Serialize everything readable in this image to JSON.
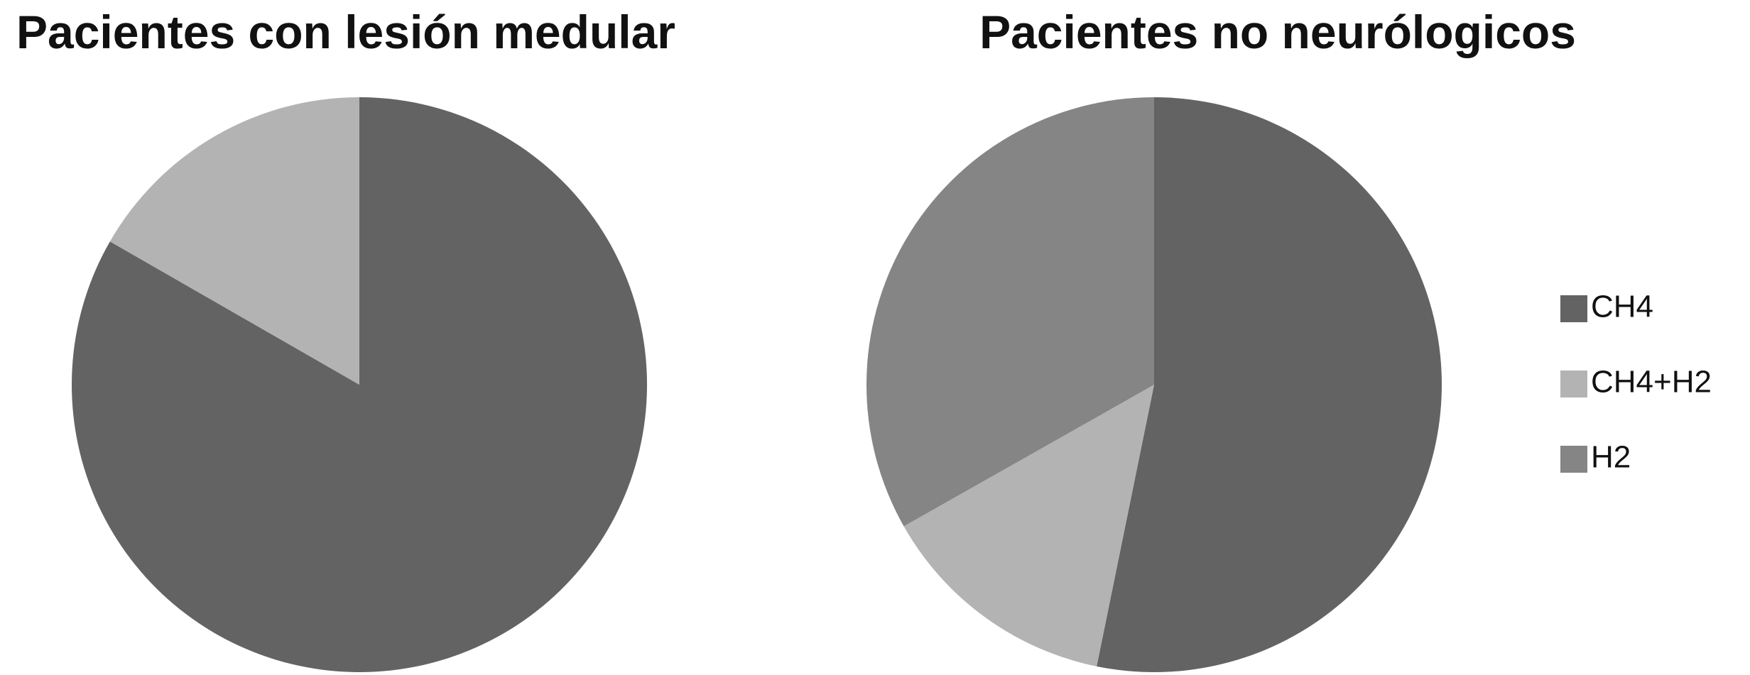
{
  "chart_data": [
    {
      "type": "pie",
      "title": "Pacientes con lesión medular",
      "categories": [
        "CH4",
        "CH4+H2",
        "H2"
      ],
      "values": [
        83.3,
        16.7,
        0
      ],
      "colors": [
        "#636363",
        "#b3b3b3",
        "#858585"
      ]
    },
    {
      "type": "pie",
      "title": "Pacientes no neurólogicos",
      "categories": [
        "CH4",
        "CH4+H2",
        "H2"
      ],
      "values": [
        53.2,
        13.6,
        33.2
      ],
      "colors": [
        "#636363",
        "#b3b3b3",
        "#858585"
      ],
      "legend": "right"
    }
  ]
}
